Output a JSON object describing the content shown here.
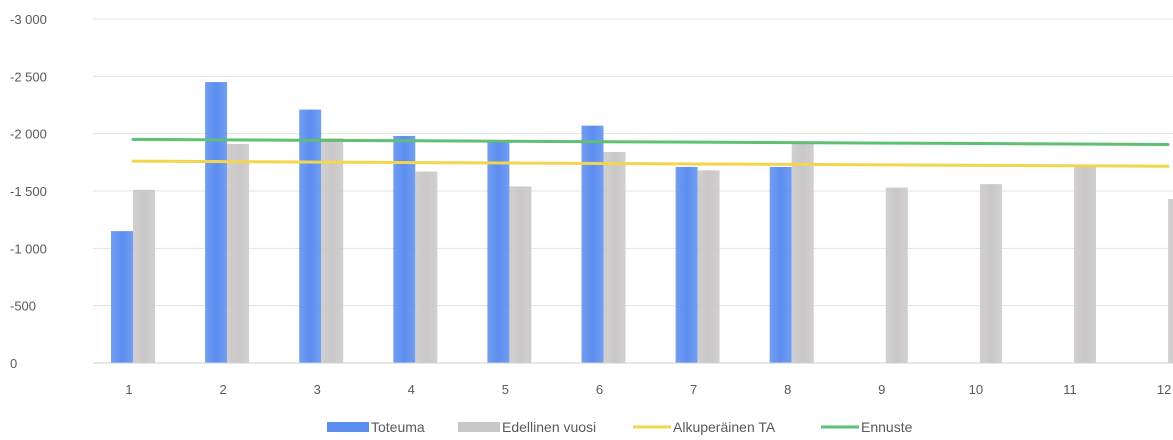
{
  "chart_data": {
    "type": "bar",
    "title": "",
    "xlabel": "",
    "ylabel": "",
    "categories": [
      "1",
      "2",
      "3",
      "4",
      "5",
      "6",
      "7",
      "8",
      "9",
      "10",
      "11",
      "12"
    ],
    "ylim": [
      0,
      -3000
    ],
    "yticks": [
      0,
      -500,
      -1000,
      -1500,
      -2000,
      -2500,
      -3000
    ],
    "ytick_labels": [
      "0",
      "-500",
      "-1 000",
      "-1 500",
      "-2 000",
      "-2 500",
      "-3 000"
    ],
    "grid": true,
    "legend_position": "bottom",
    "series": [
      {
        "name": "Toteuma",
        "kind": "bar",
        "color": "#5b8def",
        "values": [
          -1150,
          -2450,
          -2210,
          -1980,
          -1940,
          -2070,
          -1710,
          -1710,
          null,
          null,
          null,
          null
        ]
      },
      {
        "name": "Edellinen vuosi",
        "kind": "bar",
        "color": "#c9c7c8",
        "values": [
          -1510,
          -1910,
          -1960,
          -1670,
          -1540,
          -1840,
          -1680,
          -1920,
          -1530,
          -1560,
          -1730,
          -1430
        ]
      },
      {
        "name": "Alkuperäinen TA",
        "kind": "line",
        "color": "#f3d54e",
        "values": [
          -1760,
          -1756,
          -1752,
          -1748,
          -1744,
          -1740,
          -1736,
          -1732,
          -1728,
          -1724,
          -1720,
          -1716
        ]
      },
      {
        "name": "Ennuste",
        "kind": "line",
        "color": "#5fbf72",
        "values": [
          -1950,
          -1946,
          -1942,
          -1938,
          -1934,
          -1930,
          -1926,
          -1922,
          -1918,
          -1914,
          -1910,
          -1906
        ]
      }
    ]
  }
}
